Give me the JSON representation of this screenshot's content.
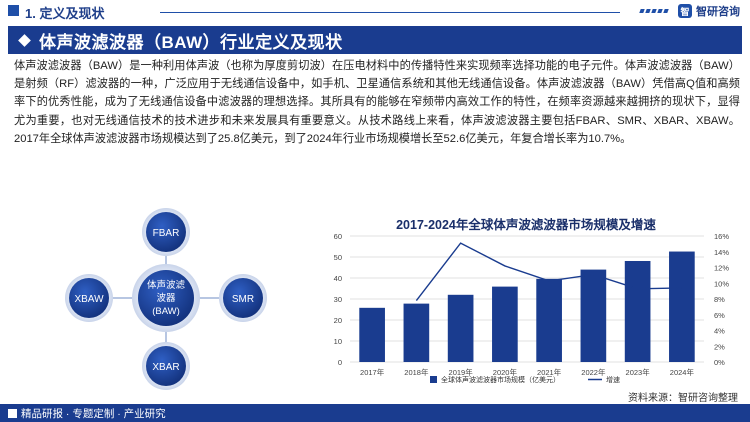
{
  "header": {
    "section": "1. 定义及现状",
    "brand_logo": "智",
    "brand_name": "智研咨询"
  },
  "title": "体声波滤波器（BAW）行业定义及现状",
  "paragraph": "体声波滤波器（BAW）是一种利用体声波（也称为厚度剪切波）在压电材料中的传播特性来实现频率选择功能的电子元件。体声波滤波器（BAW）是射频（RF）滤波器的一种，广泛应用于无线通信设备中，如手机、卫星通信系统和其他无线通信设备。体声波滤波器（BAW）凭借高Q值和高频率下的优秀性能，成为了无线通信设备中滤波器的理想选择。其所具有的能够在窄频带内高效工作的特性，在频率资源越来越拥挤的现状下，显得尤为重要，也对无线通信技术的技术进步和未来发展具有重要意义。从技术路线上来看，体声波滤波器主要包括FBAR、SMR、XBAR、XBAW。2017年全球体声波滤波器市场规模达到了25.8亿美元，到了2024年行业市场规模增长至52.6亿美元，年复合增长率为10.7%。",
  "diagram": {
    "center_lines": [
      "体声波滤",
      "波器",
      "(BAW)"
    ],
    "top": "FBAR",
    "right": "SMR",
    "bottom": "XBAR",
    "left": "XBAW"
  },
  "chart_data": {
    "type": "bar+line",
    "title": "2017-2024年全球体声波滤波器市场规模及增速",
    "categories": [
      "2017年",
      "2018年",
      "2019年",
      "2020年",
      "2021年",
      "2022年",
      "2023年",
      "2024年"
    ],
    "series": [
      {
        "name": "全球体声波滤波器市场规模（亿美元）",
        "type": "bar",
        "axis": "left",
        "values": [
          25.8,
          27.8,
          32.0,
          35.9,
          39.6,
          44.0,
          48.1,
          52.6
        ]
      },
      {
        "name": "增速",
        "type": "line",
        "axis": "right",
        "values": [
          null,
          7.8,
          15.1,
          12.2,
          10.3,
          11.1,
          9.3,
          9.4
        ]
      }
    ],
    "ylim_left": [
      0,
      60
    ],
    "yticks_left": [
      "0",
      "10",
      "20",
      "30",
      "40",
      "50",
      "60"
    ],
    "ylim_right": [
      0,
      16
    ],
    "yticks_right": [
      "0%",
      "2%",
      "4%",
      "6%",
      "8%",
      "10%",
      "12%",
      "14%",
      "16%"
    ],
    "legend_position": "bottom",
    "grid": true,
    "bar_color": "#1a3c8f",
    "line_color": "#1a3c8f"
  },
  "footer": {
    "slogan": "精品研报 · 专题定制 · 产业研究",
    "source": "资料来源：智研咨询整理"
  }
}
